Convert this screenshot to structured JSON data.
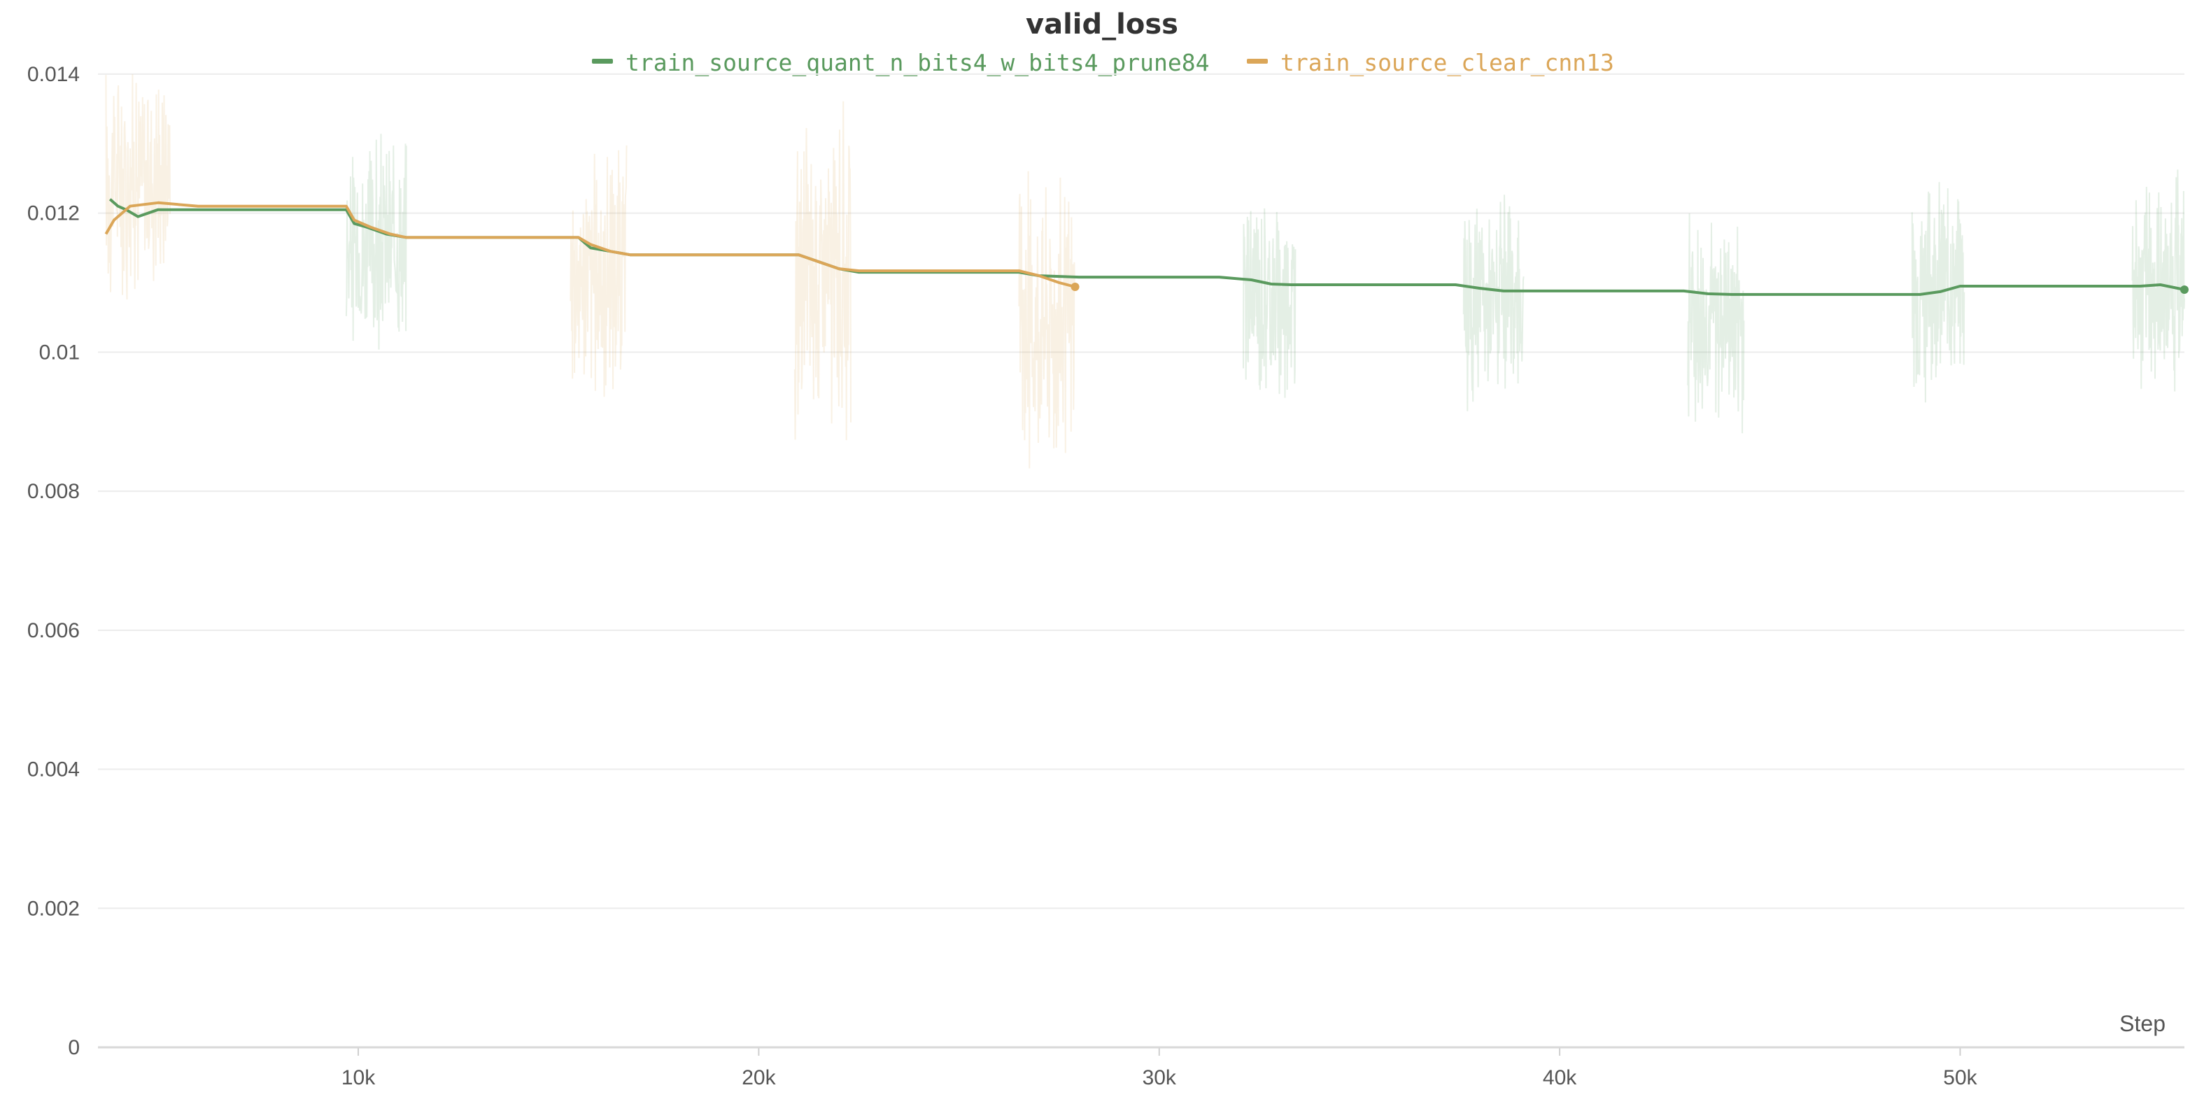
{
  "chart_data": {
    "type": "line",
    "title": "valid_loss",
    "xlabel": "Step",
    "ylabel": "",
    "xlim": [
      3500,
      55600
    ],
    "ylim": [
      0,
      0.0141
    ],
    "x_ticks": [
      10000,
      20000,
      30000,
      40000,
      50000
    ],
    "x_tick_labels": [
      "10k",
      "20k",
      "30k",
      "40k",
      "50k"
    ],
    "y_ticks": [
      0,
      0.002,
      0.004,
      0.006,
      0.008,
      0.01,
      0.012,
      0.014
    ],
    "y_tick_labels": [
      "0",
      "0.002",
      "0.004",
      "0.006",
      "0.008",
      "0.01",
      "0.012",
      "0.014"
    ],
    "grid": true,
    "legend_position": "top-center",
    "series": [
      {
        "name": "train_source_quant_n_bits4_w_bits4_prune84",
        "color": "#5a9a5e",
        "x": [
          3800,
          4000,
          4200,
          4500,
          5000,
          6000,
          9700,
          9900,
          10200,
          10700,
          11200,
          15500,
          15800,
          16300,
          16800,
          21000,
          21500,
          22000,
          22500,
          26500,
          27000,
          28000,
          31500,
          32300,
          32800,
          33300,
          37400,
          38000,
          38600,
          39300,
          43100,
          43700,
          44300,
          49000,
          49500,
          50000,
          54500,
          55000,
          55600
        ],
        "values": [
          0.0122,
          0.0121,
          0.01205,
          0.01195,
          0.01205,
          0.01205,
          0.01205,
          0.01185,
          0.0118,
          0.0117,
          0.01165,
          0.01165,
          0.0115,
          0.01145,
          0.0114,
          0.0114,
          0.0113,
          0.0112,
          0.01115,
          0.01115,
          0.0111,
          0.01108,
          0.01108,
          0.01104,
          0.01098,
          0.01097,
          0.01097,
          0.01092,
          0.01088,
          0.01088,
          0.01088,
          0.01084,
          0.01083,
          0.01083,
          0.01087,
          0.01095,
          0.01095,
          0.01097,
          0.0109
        ]
      },
      {
        "name": "train_source_clear_cnn13",
        "color": "#dba658",
        "x": [
          3700,
          3900,
          4300,
          5000,
          6000,
          9700,
          9900,
          10300,
          10800,
          11200,
          15500,
          15800,
          16300,
          16800,
          20500,
          21000,
          21500,
          22000,
          22500,
          26500,
          27000,
          27500,
          27900
        ],
        "values": [
          0.0117,
          0.0119,
          0.0121,
          0.01215,
          0.0121,
          0.0121,
          0.0119,
          0.0118,
          0.0117,
          0.01165,
          0.01165,
          0.01155,
          0.01145,
          0.0114,
          0.0114,
          0.0114,
          0.0113,
          0.0112,
          0.01117,
          0.01117,
          0.0111,
          0.011,
          0.01094
        ]
      }
    ],
    "noise_bands": [
      {
        "series_index": 1,
        "x_start": 3700,
        "x_end": 5300,
        "y_low": 0.0106,
        "y_high": 0.0145
      },
      {
        "series_index": 0,
        "x_start": 9700,
        "x_end": 11200,
        "y_low": 0.0097,
        "y_high": 0.0133
      },
      {
        "series_index": 1,
        "x_start": 15300,
        "x_end": 16700,
        "y_low": 0.0091,
        "y_high": 0.0132
      },
      {
        "series_index": 1,
        "x_start": 20900,
        "x_end": 22300,
        "y_low": 0.0084,
        "y_high": 0.0137
      },
      {
        "series_index": 1,
        "x_start": 26500,
        "x_end": 27900,
        "y_low": 0.0081,
        "y_high": 0.0128
      },
      {
        "series_index": 0,
        "x_start": 32100,
        "x_end": 33400,
        "y_low": 0.0091,
        "y_high": 0.0125
      },
      {
        "series_index": 0,
        "x_start": 37600,
        "x_end": 39100,
        "y_low": 0.0091,
        "y_high": 0.0123
      },
      {
        "series_index": 0,
        "x_start": 43200,
        "x_end": 44600,
        "y_low": 0.0088,
        "y_high": 0.0123
      },
      {
        "series_index": 0,
        "x_start": 48800,
        "x_end": 50100,
        "y_low": 0.0092,
        "y_high": 0.0128
      },
      {
        "series_index": 0,
        "x_start": 54300,
        "x_end": 55600,
        "y_low": 0.0092,
        "y_high": 0.0127
      }
    ]
  }
}
